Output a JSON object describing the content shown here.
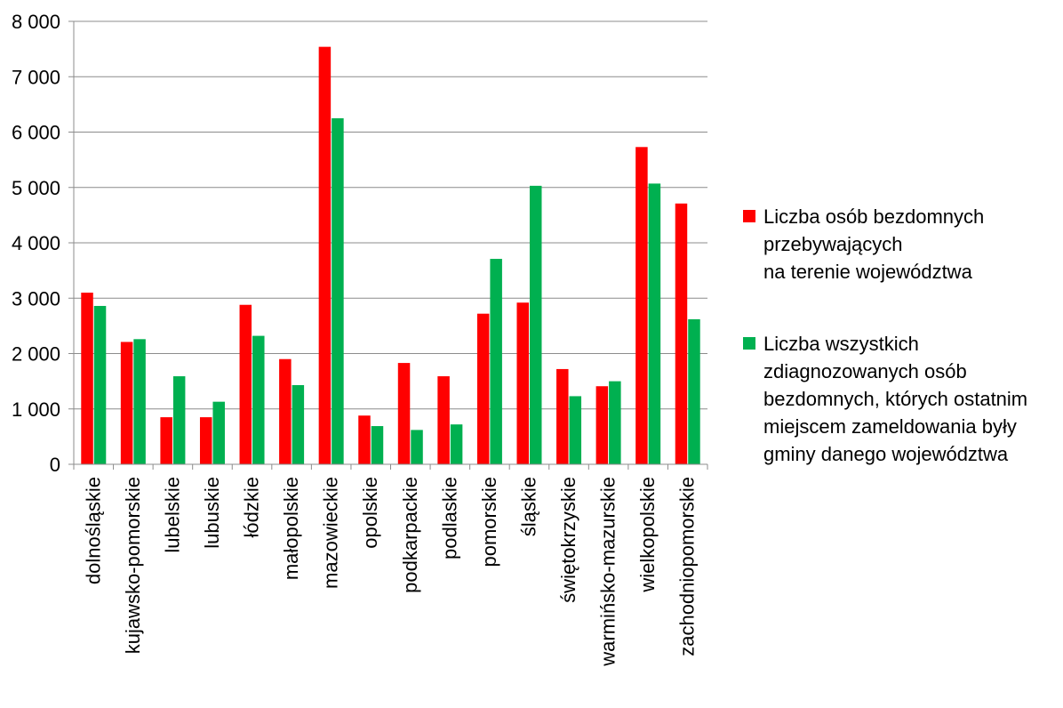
{
  "chart_data": {
    "type": "bar",
    "title": "",
    "xlabel": "",
    "ylabel": "",
    "ylim": [
      0,
      8000
    ],
    "yticks": [
      0,
      1000,
      2000,
      3000,
      4000,
      5000,
      6000,
      7000,
      8000
    ],
    "ytick_labels": [
      "0",
      "1 000",
      "2 000",
      "3 000",
      "4 000",
      "5 000",
      "6 000",
      "7 000",
      "8 000"
    ],
    "grid": true,
    "legend_position": "right",
    "categories": [
      "dolnośląskie",
      "kujawsko-pomorskie",
      "lubelskie",
      "lubuskie",
      "łódzkie",
      "małopolskie",
      "mazowieckie",
      "opolskie",
      "podkarpackie",
      "podlaskie",
      "pomorskie",
      "śląskie",
      "świętokrzyskie",
      "warmińsko-mazurskie",
      "wielkopolskie",
      "zachodniopomorskie"
    ],
    "series": [
      {
        "name": "Liczba osób bezdomnych przebywających na terenie województwa",
        "color": "#ff0000",
        "values": [
          3100,
          2210,
          850,
          850,
          2880,
          1900,
          7540,
          880,
          1830,
          1590,
          2720,
          2920,
          1720,
          1410,
          5730,
          4710
        ]
      },
      {
        "name": "Liczba wszystkich zdiagnozowanych osób bezdomnych, których ostatnim miejscem zameldowania były gminy danego województwa",
        "color": "#00b050",
        "values": [
          2860,
          2260,
          1590,
          1130,
          2320,
          1430,
          6250,
          690,
          620,
          720,
          3710,
          5030,
          1230,
          1500,
          5070,
          2620
        ]
      }
    ]
  },
  "legend": [
    {
      "text": "Liczba osób bezdomnych\nprzebywających\nna terenie województwa",
      "color": "#ff0000"
    },
    {
      "text": "Liczba wszystkich\nzdiagnozowanych osób\nbezdomnych, których ostatnim\nmiejscem zameldowania były\ngminy danego województwa",
      "color": "#00b050"
    }
  ]
}
